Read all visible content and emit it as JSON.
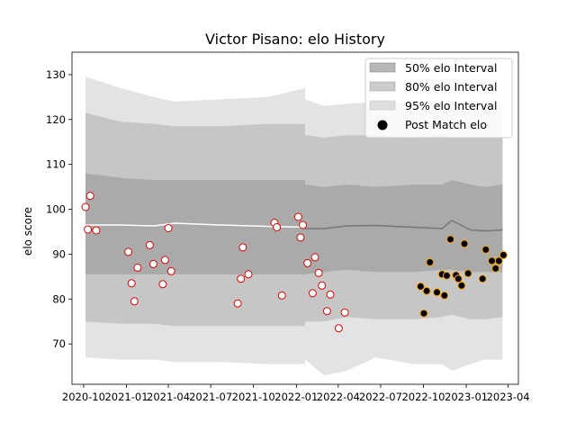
{
  "chart_data": {
    "type": "scatter",
    "title": "Victor Pisano: elo History",
    "xlabel": "",
    "ylabel": "elo score",
    "xlim": [
      "2020-09-06",
      "2023-04-23"
    ],
    "ylim": [
      61,
      135
    ],
    "yticks": [
      70,
      80,
      90,
      100,
      110,
      120,
      130
    ],
    "xticks": [
      "2020-10",
      "2021-01",
      "2021-04",
      "2021-07",
      "2021-10",
      "2022-01",
      "2022-04",
      "2022-07",
      "2022-10",
      "2023-01",
      "2023-04"
    ],
    "legend": {
      "placement": "top-right",
      "entries": [
        "50% elo Interval",
        "80% elo Interval",
        "95% elo Interval",
        "Post Match elo"
      ]
    },
    "colors": {
      "band50": "#888888",
      "band80": "#aaaaaa",
      "band95": "#cccccc",
      "marker_edge_early": "#dd0000",
      "marker_edge_late": "#ffa500",
      "marker_fill_late": "#000000"
    },
    "intervals": {
      "period1": {
        "x": [
          "2020-10-05",
          "2020-12-20",
          "2021-03-01",
          "2021-04-15",
          "2021-07-20",
          "2021-11-01",
          "2022-01-20"
        ],
        "center": [
          96.5,
          96.5,
          96.3,
          96.9,
          96.5,
          96.2,
          96.0
        ],
        "p50": [
          [
            85.5,
            108.0
          ],
          [
            85.5,
            107.0
          ],
          [
            85.5,
            106.5
          ],
          [
            85.5,
            106.5
          ],
          [
            85.5,
            106.5
          ],
          [
            85.5,
            106.5
          ],
          [
            85.5,
            106.5
          ]
        ],
        "p80": [
          [
            75.0,
            121.5
          ],
          [
            74.5,
            119.5
          ],
          [
            74.5,
            119.0
          ],
          [
            74.0,
            118.5
          ],
          [
            74.0,
            118.5
          ],
          [
            74.0,
            119.0
          ],
          [
            74.0,
            119.0
          ]
        ],
        "p95": [
          [
            67.0,
            129.5
          ],
          [
            66.5,
            127.0
          ],
          [
            66.5,
            125.0
          ],
          [
            66.0,
            124.0
          ],
          [
            66.0,
            124.5
          ],
          [
            65.5,
            125.0
          ],
          [
            65.5,
            127.0
          ]
        ]
      },
      "period2": {
        "x": [
          "2022-01-20",
          "2022-03-01",
          "2022-04-20",
          "2022-06-20",
          "2022-09-10",
          "2022-11-10",
          "2022-12-01",
          "2023-01-10",
          "2023-02-10",
          "2023-03-20"
        ],
        "center": [
          95.7,
          95.7,
          96.3,
          96.4,
          96.0,
          95.7,
          97.5,
          95.4,
          95.2,
          95.4
        ],
        "p50": [
          [
            85.5,
            105.5
          ],
          [
            86.0,
            105.0
          ],
          [
            86.5,
            105.5
          ],
          [
            86.0,
            105.0
          ],
          [
            86.0,
            105.5
          ],
          [
            86.5,
            105.5
          ],
          [
            86.5,
            106.5
          ],
          [
            86.0,
            105.5
          ],
          [
            86.0,
            105.0
          ],
          [
            86.0,
            105.5
          ]
        ],
        "p80": [
          [
            75.0,
            116.5
          ],
          [
            75.0,
            116.0
          ],
          [
            76.0,
            116.5
          ],
          [
            75.5,
            116.5
          ],
          [
            75.5,
            116.0
          ],
          [
            76.0,
            116.5
          ],
          [
            76.5,
            116.0
          ],
          [
            75.5,
            116.0
          ],
          [
            75.5,
            116.0
          ],
          [
            76.0,
            116.0
          ]
        ],
        "p95": [
          [
            66.5,
            124.5
          ],
          [
            63.0,
            123.0
          ],
          [
            64.0,
            123.5
          ],
          [
            67.0,
            124.0
          ],
          [
            65.5,
            123.5
          ],
          [
            65.5,
            123.5
          ],
          [
            64.0,
            124.0
          ],
          [
            65.5,
            123.5
          ],
          [
            66.5,
            123.5
          ],
          [
            66.5,
            123.5
          ]
        ]
      }
    },
    "series": [
      {
        "points": [
          [
            "2020-10-05",
            100.5
          ],
          [
            "2020-10-10",
            95.5
          ],
          [
            "2020-10-15",
            103.0
          ],
          [
            "2020-10-28",
            95.3
          ],
          [
            "2021-01-05",
            90.5
          ],
          [
            "2021-01-12",
            83.5
          ],
          [
            "2021-01-18",
            79.5
          ],
          [
            "2021-01-25",
            87.0
          ],
          [
            "2021-02-20",
            92.0
          ],
          [
            "2021-02-28",
            87.8
          ],
          [
            "2021-03-20",
            83.3
          ],
          [
            "2021-03-25",
            88.7
          ],
          [
            "2021-04-01",
            95.8
          ],
          [
            "2021-04-07",
            86.2
          ],
          [
            "2021-08-28",
            79.0
          ],
          [
            "2021-09-04",
            84.5
          ],
          [
            "2021-09-08",
            91.5
          ],
          [
            "2021-09-20",
            85.5
          ],
          [
            "2021-11-15",
            97.0
          ],
          [
            "2021-11-20",
            96.0
          ],
          [
            "2021-12-01",
            80.8
          ],
          [
            "2022-01-05",
            98.3
          ],
          [
            "2022-01-10",
            93.7
          ],
          [
            "2022-01-15",
            96.5
          ],
          [
            "2022-01-25",
            88.0
          ],
          [
            "2022-02-05",
            81.3
          ],
          [
            "2022-02-10",
            89.3
          ],
          [
            "2022-02-18",
            85.8
          ],
          [
            "2022-02-25",
            83.0
          ],
          [
            "2022-03-08",
            77.3
          ],
          [
            "2022-03-15",
            81.0
          ],
          [
            "2022-04-02",
            73.5
          ],
          [
            "2022-04-15",
            77.0
          ]
        ]
      },
      {
        "points": [
          [
            "2022-09-25",
            82.8
          ],
          [
            "2022-10-02",
            76.8
          ],
          [
            "2022-10-08",
            81.8
          ],
          [
            "2022-10-15",
            88.2
          ],
          [
            "2022-10-30",
            81.5
          ],
          [
            "2022-11-10",
            85.5
          ],
          [
            "2022-11-15",
            80.8
          ],
          [
            "2022-11-20",
            85.2
          ],
          [
            "2022-11-28",
            93.3
          ],
          [
            "2022-12-10",
            85.3
          ],
          [
            "2022-12-15",
            84.5
          ],
          [
            "2022-12-22",
            83.0
          ],
          [
            "2022-12-28",
            92.3
          ],
          [
            "2023-01-05",
            85.7
          ],
          [
            "2023-02-05",
            84.5
          ],
          [
            "2023-02-12",
            91.0
          ],
          [
            "2023-02-25",
            88.5
          ],
          [
            "2023-03-05",
            86.8
          ],
          [
            "2023-03-12",
            88.5
          ],
          [
            "2023-03-22",
            89.8
          ]
        ]
      }
    ]
  }
}
